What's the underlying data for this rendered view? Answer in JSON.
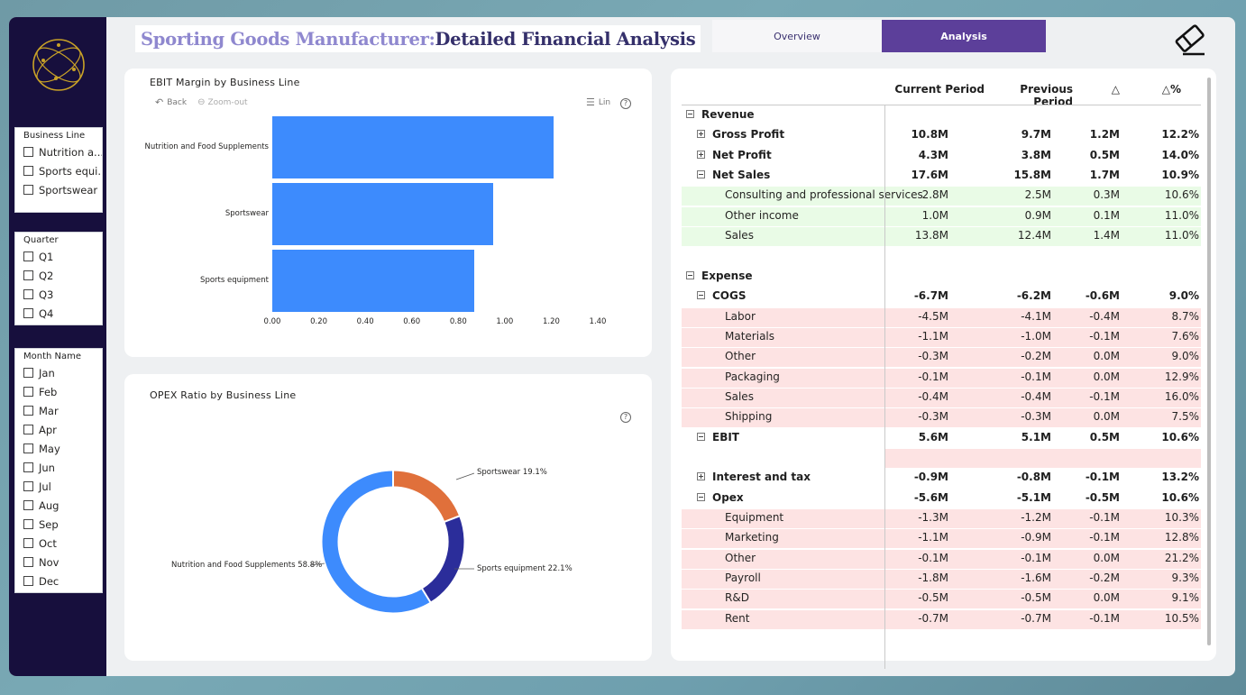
{
  "header": {
    "title_part1": "Sporting Goods Manufacturer: ",
    "title_part2": "Detailed Financial Analysis",
    "nav": {
      "overview": "Overview",
      "analysis": "Analysis"
    }
  },
  "slicers": {
    "business_line": {
      "title": "Business Line",
      "items": [
        "Nutrition a...",
        "Sports equi...",
        "Sportswear"
      ]
    },
    "quarter": {
      "title": "Quarter",
      "items": [
        "Q1",
        "Q2",
        "Q3",
        "Q4"
      ]
    },
    "month": {
      "title": "Month Name",
      "items": [
        "Jan",
        "Feb",
        "Mar",
        "Apr",
        "May",
        "Jun",
        "Jul",
        "Aug",
        "Sep",
        "Oct",
        "Nov",
        "Dec"
      ]
    }
  },
  "ebit_chart": {
    "toolbar": {
      "back": "Back",
      "zoom_out": "Zoom-out",
      "lin": "Lin"
    }
  },
  "opex_chart": {},
  "chart_data": [
    {
      "type": "bar",
      "orientation": "horizontal",
      "title": "EBIT Margin by Business Line",
      "categories": [
        "Nutrition and Food Supplements",
        "Sportswear",
        "Sports equipment"
      ],
      "values": [
        1.21,
        0.95,
        0.87
      ],
      "xlim": [
        0,
        1.4
      ],
      "ticks": [
        "0.00",
        "0.20",
        "0.40",
        "0.60",
        "0.80",
        "1.00",
        "1.20",
        "1.40"
      ],
      "color": "#3d8bfd"
    },
    {
      "type": "pie",
      "donut": true,
      "title": "OPEX Ratio by Business Line",
      "slices": [
        {
          "label": "Sportswear 19.1%",
          "value": 19.1,
          "color": "#e0703b"
        },
        {
          "label": "Sports equipment 22.1%",
          "value": 22.1,
          "color": "#2b2d9a"
        },
        {
          "label": "Nutrition and Food Supplements  58.8%",
          "value": 58.8,
          "color": "#3d8bfd"
        }
      ]
    }
  ],
  "matrix": {
    "headers": [
      "Current Period",
      "Previous Period",
      "△",
      "△%"
    ],
    "rows": [
      {
        "label": "Revenue",
        "level": 0,
        "toggle": "minus",
        "bold": true,
        "values": [
          "",
          "",
          "",
          ""
        ],
        "bg": ""
      },
      {
        "label": "Gross Profit",
        "level": 1,
        "toggle": "plus",
        "bold": true,
        "values": [
          "10.8M",
          "9.7M",
          "1.2M",
          "12.2%"
        ],
        "bg": ""
      },
      {
        "label": "Net Profit",
        "level": 1,
        "toggle": "plus",
        "bold": true,
        "values": [
          "4.3M",
          "3.8M",
          "0.5M",
          "14.0%"
        ],
        "bg": ""
      },
      {
        "label": "Net Sales",
        "level": 1,
        "toggle": "minus",
        "bold": true,
        "values": [
          "17.6M",
          "15.8M",
          "1.7M",
          "10.9%"
        ],
        "bg": ""
      },
      {
        "label": "Consulting and professional services",
        "level": 2,
        "toggle": "",
        "bold": false,
        "values": [
          "2.8M",
          "2.5M",
          "0.3M",
          "10.6%"
        ],
        "bg": "green"
      },
      {
        "label": "Other income",
        "level": 2,
        "toggle": "",
        "bold": false,
        "values": [
          "1.0M",
          "0.9M",
          "0.1M",
          "11.0%"
        ],
        "bg": "green"
      },
      {
        "label": "Sales",
        "level": 2,
        "toggle": "",
        "bold": false,
        "values": [
          "13.8M",
          "12.4M",
          "1.4M",
          "11.0%"
        ],
        "bg": "green"
      },
      {
        "label": "",
        "level": 0,
        "toggle": "",
        "bold": false,
        "values": [
          "",
          "",
          "",
          ""
        ],
        "bg": ""
      },
      {
        "label": "Expense",
        "level": 0,
        "toggle": "minus",
        "bold": true,
        "values": [
          "",
          "",
          "",
          ""
        ],
        "bg": ""
      },
      {
        "label": "COGS",
        "level": 1,
        "toggle": "minus",
        "bold": true,
        "values": [
          "-6.7M",
          "-6.2M",
          "-0.6M",
          "9.0%"
        ],
        "bg": ""
      },
      {
        "label": "Labor",
        "level": 2,
        "toggle": "",
        "bold": false,
        "values": [
          "-4.5M",
          "-4.1M",
          "-0.4M",
          "8.7%"
        ],
        "bg": "pink"
      },
      {
        "label": "Materials",
        "level": 2,
        "toggle": "",
        "bold": false,
        "values": [
          "-1.1M",
          "-1.0M",
          "-0.1M",
          "7.6%"
        ],
        "bg": "pink"
      },
      {
        "label": "Other",
        "level": 2,
        "toggle": "",
        "bold": false,
        "values": [
          "-0.3M",
          "-0.2M",
          "0.0M",
          "9.0%"
        ],
        "bg": "pink"
      },
      {
        "label": "Packaging",
        "level": 2,
        "toggle": "",
        "bold": false,
        "values": [
          "-0.1M",
          "-0.1M",
          "0.0M",
          "12.9%"
        ],
        "bg": "pink"
      },
      {
        "label": "Sales",
        "level": 2,
        "toggle": "",
        "bold": false,
        "values": [
          "-0.4M",
          "-0.4M",
          "-0.1M",
          "16.0%"
        ],
        "bg": "pink"
      },
      {
        "label": "Shipping",
        "level": 2,
        "toggle": "",
        "bold": false,
        "values": [
          "-0.3M",
          "-0.3M",
          "0.0M",
          "7.5%"
        ],
        "bg": "pink"
      },
      {
        "label": "EBIT",
        "level": 1,
        "toggle": "minus",
        "bold": true,
        "values": [
          "5.6M",
          "5.1M",
          "0.5M",
          "10.6%"
        ],
        "bg": ""
      },
      {
        "label": "",
        "level": 0,
        "toggle": "",
        "bold": false,
        "values": [
          "",
          "",
          "",
          ""
        ],
        "bg": "pink-right"
      },
      {
        "label": "Interest and tax",
        "level": 1,
        "toggle": "plus",
        "bold": true,
        "values": [
          "-0.9M",
          "-0.8M",
          "-0.1M",
          "13.2%"
        ],
        "bg": ""
      },
      {
        "label": "Opex",
        "level": 1,
        "toggle": "minus",
        "bold": true,
        "values": [
          "-5.6M",
          "-5.1M",
          "-0.5M",
          "10.6%"
        ],
        "bg": ""
      },
      {
        "label": "Equipment",
        "level": 2,
        "toggle": "",
        "bold": false,
        "values": [
          "-1.3M",
          "-1.2M",
          "-0.1M",
          "10.3%"
        ],
        "bg": "pink"
      },
      {
        "label": "Marketing",
        "level": 2,
        "toggle": "",
        "bold": false,
        "values": [
          "-1.1M",
          "-0.9M",
          "-0.1M",
          "12.8%"
        ],
        "bg": "pink"
      },
      {
        "label": "Other",
        "level": 2,
        "toggle": "",
        "bold": false,
        "values": [
          "-0.1M",
          "-0.1M",
          "0.0M",
          "21.2%"
        ],
        "bg": "pink"
      },
      {
        "label": "Payroll",
        "level": 2,
        "toggle": "",
        "bold": false,
        "values": [
          "-1.8M",
          "-1.6M",
          "-0.2M",
          "9.3%"
        ],
        "bg": "pink"
      },
      {
        "label": "R&D",
        "level": 2,
        "toggle": "",
        "bold": false,
        "values": [
          "-0.5M",
          "-0.5M",
          "0.0M",
          "9.1%"
        ],
        "bg": "pink"
      },
      {
        "label": "Rent",
        "level": 2,
        "toggle": "",
        "bold": false,
        "values": [
          "-0.7M",
          "-0.7M",
          "-0.1M",
          "10.5%"
        ],
        "bg": "pink"
      }
    ]
  }
}
